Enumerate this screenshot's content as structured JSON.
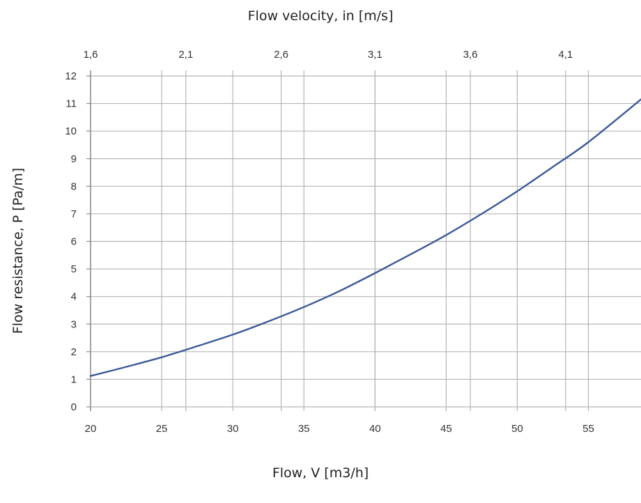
{
  "labels": {
    "x_top": "Flow velocity, in [m/s]",
    "x_bottom": "Flow, V [m3/h]",
    "y": "Flow resistance, P [Pa/m]"
  },
  "chart_data": {
    "type": "line",
    "title": "",
    "xlabel": "Flow, V [m3/h]",
    "ylabel": "Flow resistance, P [Pa/m]",
    "x2label": "Flow velocity, in [m/s]",
    "xlim": [
      20,
      58.7
    ],
    "ylim": [
      0,
      12
    ],
    "x_ticks": [
      "20",
      "25",
      "30",
      "35",
      "40",
      "45",
      "50",
      "55"
    ],
    "y_ticks": [
      "0",
      "1",
      "2",
      "3",
      "4",
      "5",
      "6",
      "7",
      "8",
      "9",
      "10",
      "11",
      "12"
    ],
    "top_ticks": [
      {
        "label": "1,6",
        "flow": 20
      },
      {
        "label": "2,1",
        "flow": 26.7
      },
      {
        "label": "2,6",
        "flow": 33.4
      },
      {
        "label": "3,1",
        "flow": 40
      },
      {
        "label": "3,6",
        "flow": 46.7
      },
      {
        "label": "4,1",
        "flow": 53.4
      }
    ],
    "grid": true,
    "line_color": "#3b5998",
    "series": [
      {
        "x": [
          20,
          22.5,
          25,
          27.5,
          30,
          32.5,
          35,
          37.5,
          40,
          42.5,
          45,
          47.5,
          50,
          52.5,
          55,
          58.7
        ],
        "y": [
          1.12,
          1.45,
          1.8,
          2.2,
          2.62,
          3.1,
          3.62,
          4.2,
          4.85,
          5.53,
          6.23,
          7.0,
          7.82,
          8.7,
          9.6,
          11.15
        ]
      }
    ]
  }
}
